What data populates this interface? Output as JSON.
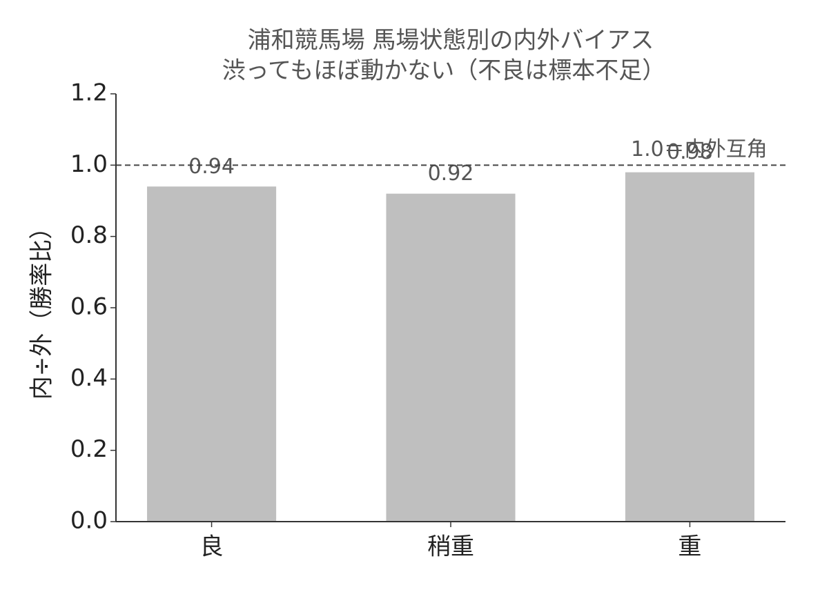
{
  "chart_data": {
    "type": "bar",
    "title": "浦和競馬場 馬場状態別の内外バイアス",
    "subtitle": "渋ってもほぼ動かない（不良は標本不足）",
    "y_label": "内÷外（勝率比）",
    "categories": [
      "良",
      "稍重",
      "重"
    ],
    "values": [
      0.94,
      0.92,
      0.98
    ],
    "color": "#bfbfbf",
    "ylim": [
      0,
      1.2
    ],
    "yticks": [
      {
        "value": 0,
        "label": "0.0"
      },
      {
        "value": 0.2,
        "label": "0.2"
      },
      {
        "value": 0.4,
        "label": "0.4"
      },
      {
        "value": 0.6,
        "label": "0.6"
      },
      {
        "value": 0.8,
        "label": "0.8"
      },
      {
        "value": 1.0,
        "label": "1.0"
      },
      {
        "value": 1.2,
        "label": "1.2"
      }
    ],
    "reference_line": {
      "value": 1.0,
      "label": "1.0＝内外互角"
    }
  }
}
